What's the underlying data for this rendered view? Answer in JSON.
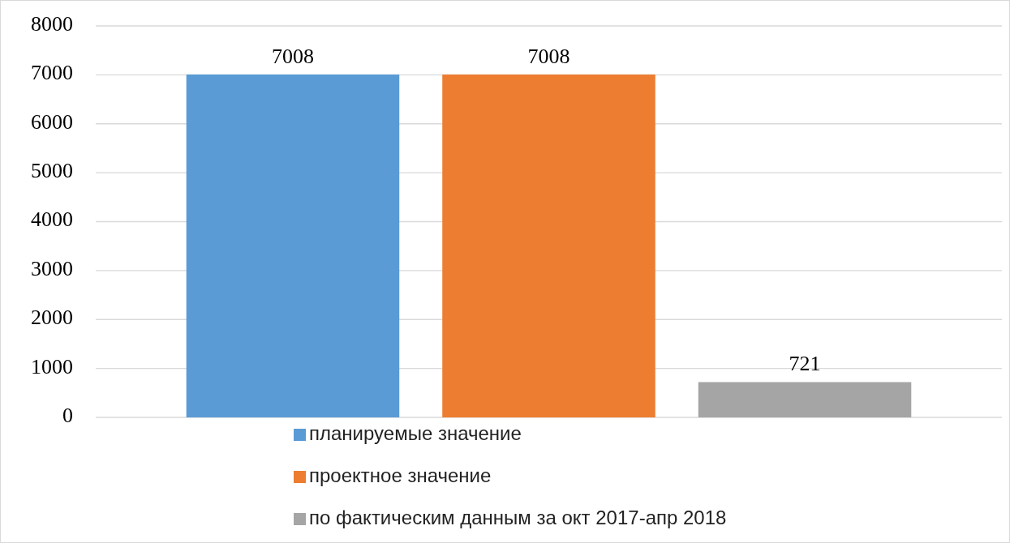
{
  "chart_data": {
    "type": "bar",
    "categories": [
      null
    ],
    "series": [
      {
        "name": "планируемые значение",
        "color": "#5b9bd5",
        "values": [
          7008
        ]
      },
      {
        "name": "проектное значение",
        "color": "#ed7d31",
        "values": [
          7008
        ]
      },
      {
        "name": "по фактическим данным за окт 2017-апр 2018",
        "color": "#a5a5a5",
        "values": [
          721
        ]
      }
    ],
    "ylim": [
      0,
      8000
    ],
    "yticks": [
      0,
      1000,
      2000,
      3000,
      4000,
      5000,
      6000,
      7000,
      8000
    ],
    "grid": "y",
    "data_labels": true,
    "legend": "bottom"
  }
}
